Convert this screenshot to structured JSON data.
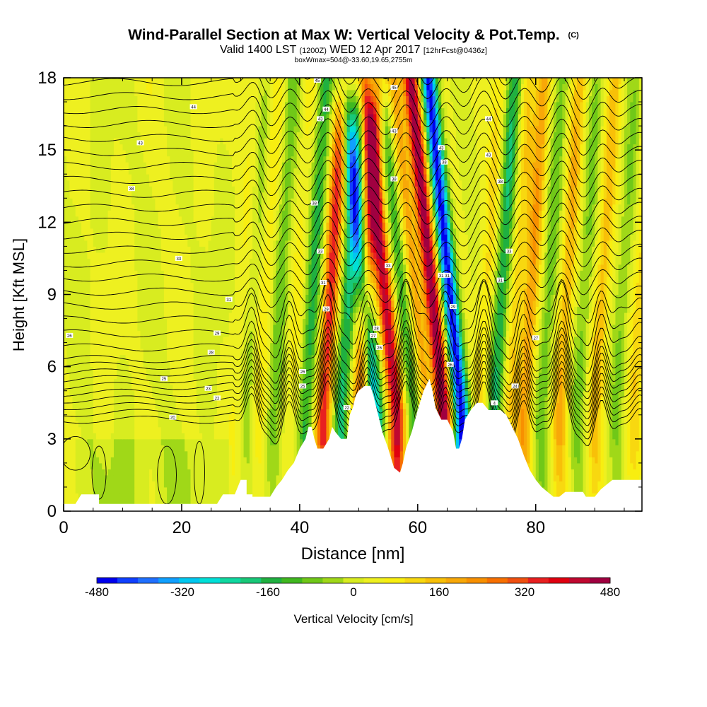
{
  "header": {
    "title": "Wind-Parallel Section at Max W: Vertical Velocity & Pot.Temp.",
    "copyright": "(C)",
    "valid_prefix": "Valid 1400 LST",
    "valid_utc": "(1200Z)",
    "valid_date": "WED 12 Apr 2017",
    "forecast": "[12hrFcst@0436z]",
    "box_info": "boxWmax=504@-33.60,19.65,2755m"
  },
  "chart_data": {
    "type": "heatmap",
    "title": "Wind-Parallel Section at Max W: Vertical Velocity & Pot.Temp.",
    "xlabel": "Distance [nm]",
    "ylabel": "Height [Kft MSL]",
    "xlim": [
      0,
      98
    ],
    "ylim": [
      0,
      18
    ],
    "x_ticks": [
      0,
      20,
      40,
      60,
      80
    ],
    "y_ticks": [
      0,
      3,
      6,
      9,
      12,
      15,
      18
    ],
    "field": "Vertical Velocity",
    "colorbar": {
      "label": "Vertical Velocity [cm/s]",
      "min": -480,
      "max": 480,
      "step": 40,
      "ticks": [
        -480,
        -320,
        -160,
        0,
        160,
        320,
        480
      ],
      "colors": [
        "#0000ee",
        "#1040ff",
        "#2070ff",
        "#10a0ff",
        "#00c8f0",
        "#00e0d8",
        "#10d8a0",
        "#18c878",
        "#20b040",
        "#40b820",
        "#70c818",
        "#a0d818",
        "#d8ec20",
        "#eef020",
        "#f8ee10",
        "#f8d810",
        "#f8c008",
        "#f8a808",
        "#f89000",
        "#f87000",
        "#f05010",
        "#e82020",
        "#e00010",
        "#c00830",
        "#a00040"
      ]
    },
    "wave_bands": [
      {
        "x": 29,
        "w": 40
      },
      {
        "x": 31,
        "w": -60
      },
      {
        "x": 33,
        "w": 80
      },
      {
        "x": 35.5,
        "w": -120
      },
      {
        "x": 38.5,
        "w": 60
      },
      {
        "x": 41,
        "w": -170
      },
      {
        "x": 44,
        "w": 330
      },
      {
        "x": 47,
        "w": -210
      },
      {
        "x": 50,
        "w": 250
      },
      {
        "x": 53,
        "w": -300
      },
      {
        "x": 56.5,
        "w": 400
      },
      {
        "x": 59.5,
        "w": -130
      },
      {
        "x": 61.5,
        "w": 160
      },
      {
        "x": 64.5,
        "w": 470
      },
      {
        "x": 67.5,
        "w": -480
      },
      {
        "x": 70.5,
        "w": 90
      },
      {
        "x": 73,
        "w": -230
      },
      {
        "x": 75.5,
        "w": 120
      },
      {
        "x": 78,
        "w": 220
      },
      {
        "x": 81,
        "w": -120
      },
      {
        "x": 84,
        "w": 180
      },
      {
        "x": 87,
        "w": -100
      },
      {
        "x": 90,
        "w": 160
      },
      {
        "x": 93.5,
        "w": -90
      },
      {
        "x": 96.5,
        "w": 120
      }
    ],
    "terrain_kft": [
      [
        0,
        0.3
      ],
      [
        2,
        0.3
      ],
      [
        3,
        0.7
      ],
      [
        6,
        0.7
      ],
      [
        6,
        0.3
      ],
      [
        12,
        0.3
      ],
      [
        20,
        0.3
      ],
      [
        26,
        0.3
      ],
      [
        27,
        0.7
      ],
      [
        29,
        0.7
      ],
      [
        30,
        1.3
      ],
      [
        31,
        1.3
      ],
      [
        31,
        0.7
      ],
      [
        32,
        0.7
      ],
      [
        32,
        0.6
      ],
      [
        33,
        0.6
      ],
      [
        35,
        0.6
      ],
      [
        36,
        1
      ],
      [
        37,
        1.3
      ],
      [
        38,
        1.7
      ],
      [
        39,
        2
      ],
      [
        40,
        2.6
      ],
      [
        41,
        3
      ],
      [
        41.5,
        3.5
      ],
      [
        42,
        3.5
      ],
      [
        42.5,
        3
      ],
      [
        43,
        2.6
      ],
      [
        44,
        2.6
      ],
      [
        45,
        3
      ],
      [
        45.5,
        3.5
      ],
      [
        46,
        3.3
      ],
      [
        47,
        3
      ],
      [
        48,
        3
      ],
      [
        48.5,
        4
      ],
      [
        49,
        4.3
      ],
      [
        49.5,
        4.8
      ],
      [
        50,
        5
      ],
      [
        51,
        5.2
      ],
      [
        52,
        5.2
      ],
      [
        52.5,
        4.8
      ],
      [
        53,
        4.3
      ],
      [
        53.5,
        3.8
      ],
      [
        54,
        3.3
      ],
      [
        55,
        2.6
      ],
      [
        55.5,
        2.2
      ],
      [
        56,
        1.8
      ],
      [
        57,
        1.6
      ],
      [
        57.5,
        2
      ],
      [
        58,
        2.6
      ],
      [
        59,
        3.3
      ],
      [
        60,
        4.2
      ],
      [
        61,
        5
      ],
      [
        62,
        5.5
      ],
      [
        62.5,
        5
      ],
      [
        63,
        4.3
      ],
      [
        64,
        3.8
      ],
      [
        65,
        3.8
      ],
      [
        66,
        3.3
      ],
      [
        66.5,
        2.6
      ],
      [
        67,
        2.6
      ],
      [
        67.5,
        3
      ],
      [
        68,
        3.8
      ],
      [
        69,
        4.2
      ],
      [
        70,
        4.5
      ],
      [
        71,
        4.5
      ],
      [
        72,
        4.2
      ],
      [
        74,
        4.2
      ],
      [
        75,
        4
      ],
      [
        76,
        3.5
      ],
      [
        77,
        3
      ],
      [
        78,
        2.3
      ],
      [
        79,
        1.7
      ],
      [
        80,
        1.3
      ],
      [
        81,
        1
      ],
      [
        82,
        0.8
      ],
      [
        83,
        0.6
      ],
      [
        84,
        0.6
      ],
      [
        85,
        0.8
      ],
      [
        86,
        0.8
      ],
      [
        88,
        0.8
      ],
      [
        88.5,
        0.6
      ],
      [
        90,
        0.6
      ],
      [
        91,
        0.9
      ],
      [
        92,
        1.1
      ],
      [
        93,
        1.3
      ],
      [
        96,
        1.3
      ],
      [
        98,
        1.3
      ]
    ],
    "isentrope_labels": [
      {
        "x": 22,
        "y": 16.8,
        "text": "44"
      },
      {
        "x": 13,
        "y": 15.3,
        "text": "43"
      },
      {
        "x": 11.5,
        "y": 13.4,
        "text": "38"
      },
      {
        "x": 19.5,
        "y": 10.5,
        "text": "33"
      },
      {
        "x": 28,
        "y": 8.8,
        "text": "31"
      },
      {
        "x": 26,
        "y": 7.4,
        "text": "29"
      },
      {
        "x": 25,
        "y": 6.6,
        "text": "28"
      },
      {
        "x": 17,
        "y": 5.5,
        "text": "25"
      },
      {
        "x": 24.5,
        "y": 5.1,
        "text": "23"
      },
      {
        "x": 26,
        "y": 4.7,
        "text": "22"
      },
      {
        "x": 18.5,
        "y": 3.9,
        "text": "20"
      },
      {
        "x": 1,
        "y": 7.3,
        "text": "26"
      },
      {
        "x": 43,
        "y": 17.9,
        "text": "45"
      },
      {
        "x": 44.5,
        "y": 16.7,
        "text": "44"
      },
      {
        "x": 43.5,
        "y": 16.3,
        "text": "43"
      },
      {
        "x": 42.5,
        "y": 12.8,
        "text": "38"
      },
      {
        "x": 43.5,
        "y": 10.8,
        "text": "33"
      },
      {
        "x": 44,
        "y": 9.5,
        "text": "31"
      },
      {
        "x": 44.5,
        "y": 8.4,
        "text": "29"
      },
      {
        "x": 40.5,
        "y": 5.8,
        "text": "26"
      },
      {
        "x": 40.5,
        "y": 5.2,
        "text": "25"
      },
      {
        "x": 48,
        "y": 4.3,
        "text": "22"
      },
      {
        "x": 53,
        "y": 7.6,
        "text": "28"
      },
      {
        "x": 52.5,
        "y": 7.3,
        "text": "27"
      },
      {
        "x": 53.5,
        "y": 6.8,
        "text": "26"
      },
      {
        "x": 56,
        "y": 17.6,
        "text": "45"
      },
      {
        "x": 56,
        "y": 15.8,
        "text": "43"
      },
      {
        "x": 56,
        "y": 13.8,
        "text": "38"
      },
      {
        "x": 55,
        "y": 10.2,
        "text": "33"
      },
      {
        "x": 64,
        "y": 15.1,
        "text": "43"
      },
      {
        "x": 64.5,
        "y": 14.5,
        "text": "38"
      },
      {
        "x": 64,
        "y": 9.8,
        "text": "31"
      },
      {
        "x": 65,
        "y": 9.8,
        "text": "31"
      },
      {
        "x": 66,
        "y": 8.5,
        "text": "29"
      },
      {
        "x": 65.5,
        "y": 6.1,
        "text": "26"
      },
      {
        "x": 72,
        "y": 16.3,
        "text": "44"
      },
      {
        "x": 72,
        "y": 14.8,
        "text": "43"
      },
      {
        "x": 74,
        "y": 13.7,
        "text": "38"
      },
      {
        "x": 75.5,
        "y": 10.8,
        "text": "33"
      },
      {
        "x": 74,
        "y": 9.6,
        "text": "31"
      },
      {
        "x": 80,
        "y": 7.2,
        "text": "27"
      },
      {
        "x": 76.5,
        "y": 5.2,
        "text": "24"
      },
      {
        "x": 73,
        "y": 4.5,
        "text": "4"
      }
    ]
  }
}
